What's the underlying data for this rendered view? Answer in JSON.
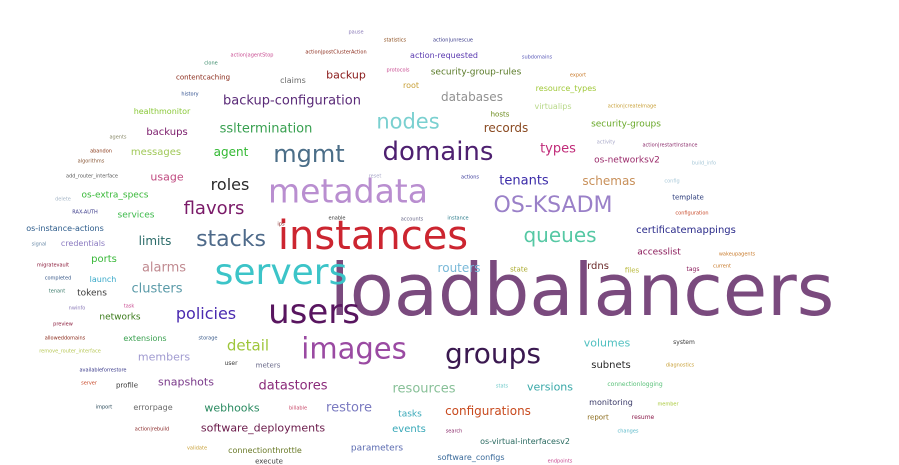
{
  "words": [
    {
      "text": "loadbalancers",
      "color": "#7a4a7e"
    },
    {
      "text": "instances",
      "color": "#cc2530"
    },
    {
      "text": "servers",
      "color": "#3cc4c8"
    },
    {
      "text": "metadata",
      "color": "#b98ed0"
    },
    {
      "text": "users",
      "color": "#58155f"
    },
    {
      "text": "images",
      "color": "#9a4aa2"
    },
    {
      "text": "groups",
      "color": "#3a1850"
    },
    {
      "text": "domains",
      "color": "#4e2070"
    },
    {
      "text": "OS-KSADM",
      "color": "#9a80c8"
    },
    {
      "text": "mgmt",
      "color": "#4b6e88"
    },
    {
      "text": "stacks",
      "color": "#4e6a8a"
    },
    {
      "text": "nodes",
      "color": "#7ad0d0"
    },
    {
      "text": "queues",
      "color": "#56c8a4"
    },
    {
      "text": "flavors",
      "color": "#7a1a68"
    },
    {
      "text": "policies",
      "color": "#4a2ab0"
    },
    {
      "text": "roles",
      "color": "#2a2a2a"
    },
    {
      "text": "detail",
      "color": "#9ec63a"
    },
    {
      "text": "alarms",
      "color": "#c08a90"
    },
    {
      "text": "clusters",
      "color": "#5a9aa8"
    },
    {
      "text": "backup-configuration",
      "color": "#5a2a78"
    },
    {
      "text": "sslterminati​on",
      "color": "#38a050"
    },
    {
      "text": "datastores",
      "color": "#8a2a7a"
    },
    {
      "text": "restore",
      "color": "#7a7ac0"
    },
    {
      "text": "resources",
      "color": "#88c098"
    },
    {
      "text": "configurations",
      "color": "#c84a1e"
    },
    {
      "text": "software_deployments",
      "color": "#6a1a4a"
    },
    {
      "text": "snapshots",
      "color": "#7a3a8a"
    },
    {
      "text": "members",
      "color": "#a09ad0"
    },
    {
      "text": "webhooks",
      "color": "#2a8a60"
    },
    {
      "text": "tenants",
      "color": "#3a2aa8"
    },
    {
      "text": "types",
      "color": "#c02a78"
    },
    {
      "text": "schemas",
      "color": "#c8905a"
    },
    {
      "text": "records",
      "color": "#8a4a22"
    },
    {
      "text": "databases",
      "color": "#909090"
    },
    {
      "text": "routers",
      "color": "#78b8d8"
    },
    {
      "text": "volumes",
      "color": "#50c0c0"
    },
    {
      "text": "versions",
      "color": "#38a8a8"
    },
    {
      "text": "subnets",
      "color": "#2a2a2a"
    },
    {
      "text": "agent",
      "color": "#32b832"
    },
    {
      "text": "limits",
      "color": "#2a6a68"
    },
    {
      "text": "backups",
      "color": "#7a1a6a"
    },
    {
      "text": "usage",
      "color": "#c04a80"
    },
    {
      "text": "messages",
      "color": "#a0c858"
    },
    {
      "text": "backup",
      "color": "#8a1a1a"
    },
    {
      "text": "certificatemappings",
      "color": "#2a2a8a"
    },
    {
      "text": "accesslist",
      "color": "#8a1a5a"
    },
    {
      "text": "rdns",
      "color": "#6a2a2a"
    },
    {
      "text": "events",
      "color": "#38a8b8"
    },
    {
      "text": "tasks",
      "color": "#38a8b8"
    },
    {
      "text": "security-groups",
      "color": "#68a828"
    },
    {
      "text": "security-group-rules",
      "color": "#5a7a28"
    },
    {
      "text": "action-requested",
      "color": "#5a3ab0"
    },
    {
      "text": "os-networksv2",
      "color": "#9a2a6a"
    },
    {
      "text": "monitoring",
      "color": "#3a3a68"
    },
    {
      "text": "parameters",
      "color": "#5a6ab0"
    },
    {
      "text": "software_configs",
      "color": "#3a6a9a"
    },
    {
      "text": "os-virtual-interfacesv2",
      "color": "#2a6a60"
    },
    {
      "text": "connectionthrottle",
      "color": "#6a7a28"
    },
    {
      "text": "errorpage",
      "color": "#6a6a6a"
    },
    {
      "text": "extensions",
      "color": "#3aa050"
    },
    {
      "text": "networks",
      "color": "#3a7a1a"
    },
    {
      "text": "tokens",
      "color": "#3a3a3a"
    },
    {
      "text": "ports",
      "color": "#38b838"
    },
    {
      "text": "launch",
      "color": "#38a8c8"
    },
    {
      "text": "credentials",
      "color": "#8a7ac0"
    },
    {
      "text": "services",
      "color": "#3ab848"
    },
    {
      "text": "os-extra_specs",
      "color": "#38b838"
    },
    {
      "text": "os-instance-actions",
      "color": "#2a5a8a"
    },
    {
      "text": "healthmonitor",
      "color": "#8ac838"
    },
    {
      "text": "contentcaching",
      "color": "#8a2a1a"
    },
    {
      "text": "claims",
      "color": "#6a6a6a"
    },
    {
      "text": "root",
      "color": "#c8a038"
    },
    {
      "text": "virtualips",
      "color": "#b8d888"
    },
    {
      "text": "resource_types",
      "color": "#a0c838"
    },
    {
      "text": "hosts",
      "color": "#6a8a1a"
    },
    {
      "text": "meters",
      "color": "#6a6a8a"
    },
    {
      "text": "profile",
      "color": "#3a3a3a"
    },
    {
      "text": "user",
      "color": "#3a3a3a"
    },
    {
      "text": "template",
      "color": "#2a3a7a"
    },
    {
      "text": "connectionlogging",
      "color": "#58c078"
    },
    {
      "text": "report",
      "color": "#8a6a1a"
    },
    {
      "text": "resume",
      "color": "#8a1a4a"
    },
    {
      "text": "system",
      "color": "#3a3a3a"
    },
    {
      "text": "tags",
      "color": "#8a1a5a"
    },
    {
      "text": "files",
      "color": "#b8b838"
    },
    {
      "text": "state",
      "color": "#a8a828"
    },
    {
      "text": "execute",
      "color": "#3a3a3a"
    },
    {
      "text": "pause",
      "color": "#8a7ab8"
    },
    {
      "text": "statistics",
      "color": "#8a4a1a"
    },
    {
      "text": "action|unrescue",
      "color": "#3a3a8a"
    },
    {
      "text": "action|agentStop",
      "color": "#c84a90"
    },
    {
      "text": "action|postClusterAction",
      "color": "#8a2a1a"
    },
    {
      "text": "subdomains",
      "color": "#5a5ab8"
    },
    {
      "text": "clone",
      "color": "#3a8a6a"
    },
    {
      "text": "protocols",
      "color": "#c84a90"
    },
    {
      "text": "export",
      "color": "#c87a2a"
    },
    {
      "text": "history",
      "color": "#2a4a8a"
    },
    {
      "text": "action|createImage",
      "color": "#c8a038"
    },
    {
      "text": "agents",
      "color": "#8a8a6a"
    },
    {
      "text": "activity",
      "color": "#a8a8c8"
    },
    {
      "text": "abandon",
      "color": "#8a3a1a"
    },
    {
      "text": "action|restartInstance",
      "color": "#8a2a6a"
    },
    {
      "text": "algorithms",
      "color": "#8a5a3a"
    },
    {
      "text": "build_info",
      "color": "#a8c8d8"
    },
    {
      "text": "add_router_interface",
      "color": "#5a5a5a"
    },
    {
      "text": "reset",
      "color": "#a8a8c8"
    },
    {
      "text": "actions",
      "color": "#3a3a9a"
    },
    {
      "text": "config",
      "color": "#a8c8d8"
    },
    {
      "text": "delete",
      "color": "#a8b8c8"
    },
    {
      "text": "RAX-AUTH",
      "color": "#3a3a8a"
    },
    {
      "text": "ips",
      "color": "#8a2a2a"
    },
    {
      "text": "enable",
      "color": "#3a3a3a"
    },
    {
      "text": "accounts",
      "color": "#6a6a8a"
    },
    {
      "text": "instance",
      "color": "#2a7a8a"
    },
    {
      "text": "configuration",
      "color": "#c84a2a"
    },
    {
      "text": "signal",
      "color": "#6a8aa8"
    },
    {
      "text": "wakeupagents",
      "color": "#c87a2a"
    },
    {
      "text": "migratevault",
      "color": "#8a1a3a"
    },
    {
      "text": "current",
      "color": "#c87a2a"
    },
    {
      "text": "completed",
      "color": "#3a5a8a"
    },
    {
      "text": "tenant",
      "color": "#3a7a6a"
    },
    {
      "text": "task",
      "color": "#c84a90"
    },
    {
      "text": "nwinfo",
      "color": "#8a7ab8"
    },
    {
      "text": "preview",
      "color": "#8a1a3a"
    },
    {
      "text": "alloweddomains",
      "color": "#8a2a1a"
    },
    {
      "text": "storage",
      "color": "#3a5a8a"
    },
    {
      "text": "remove_router_interface",
      "color": "#b8c858"
    },
    {
      "text": "availableforrestore",
      "color": "#3a3a8a"
    },
    {
      "text": "server",
      "color": "#c84a2a"
    },
    {
      "text": "diagnostics",
      "color": "#c8a038"
    },
    {
      "text": "import",
      "color": "#2a4a5a"
    },
    {
      "text": "billable",
      "color": "#c84a6a"
    },
    {
      "text": "stats",
      "color": "#6ac8c8"
    },
    {
      "text": "member",
      "color": "#a8c838"
    },
    {
      "text": "action|rebuild",
      "color": "#8a2a2a"
    },
    {
      "text": "search",
      "color": "#8a2a6a"
    },
    {
      "text": "changes",
      "color": "#5ab8c8"
    },
    {
      "text": "validate",
      "color": "#c8a038"
    },
    {
      "text": "endpoints",
      "color": "#c84a90"
    }
  ]
}
